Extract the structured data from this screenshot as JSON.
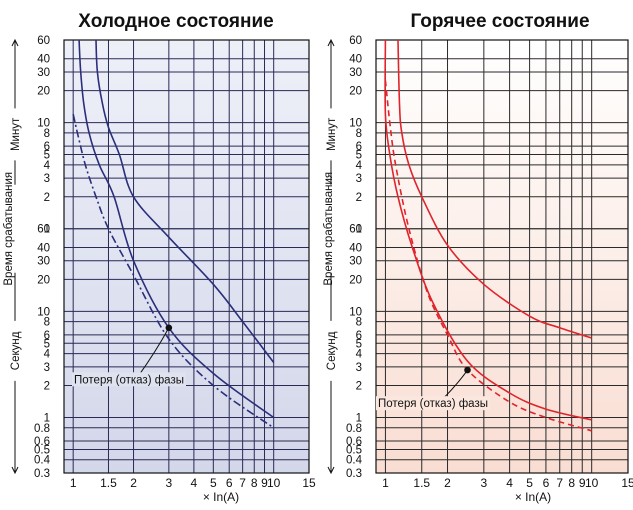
{
  "chart_data": [
    {
      "type": "line",
      "title": "Холодное состояние",
      "x_scale": "log",
      "xlim": [
        0.9,
        15
      ],
      "x_ticks": [
        "1",
        "1.5",
        "2",
        "3",
        "4",
        "5",
        "6",
        "7",
        "8",
        "9",
        "10",
        "15"
      ],
      "xlabel": "× In(A)",
      "y_scale": "log",
      "y_units": "seconds",
      "y_range_seconds": [
        0.3,
        3600
      ],
      "y_ticks_minutes": [
        "1",
        "2",
        "3",
        "4",
        "5",
        "6",
        "8",
        "10",
        "20",
        "30",
        "40",
        "60"
      ],
      "y_ticks_seconds": [
        "0.3",
        "0.4",
        "0.5",
        "0.6",
        "0.8",
        "1",
        "2",
        "3",
        "4",
        "5",
        "6",
        "8",
        "10",
        "20",
        "30",
        "40",
        "60"
      ],
      "y_axis_labels": {
        "minutes": "Минут",
        "main": "Время срабатывания",
        "seconds": "Секунд"
      },
      "grid": true,
      "colors": {
        "curve": "#2b2f7a",
        "grid": "#2a2a55",
        "background_top": "#eef0f8",
        "background_bottom": "#d3d7ea"
      },
      "series": [
        {
          "style": "solid",
          "points": [
            [
              1.3,
              3600
            ],
            [
              1.32,
              1800
            ],
            [
              1.4,
              900
            ],
            [
              1.5,
              540
            ],
            [
              1.7,
              300
            ],
            [
              2.0,
              120
            ],
            [
              3.0,
              50
            ],
            [
              5.0,
              18
            ],
            [
              7.0,
              8
            ],
            [
              10.0,
              3.3
            ]
          ]
        },
        {
          "style": "solid",
          "points": [
            [
              1.07,
              3600
            ],
            [
              1.09,
              1800
            ],
            [
              1.13,
              900
            ],
            [
              1.2,
              480
            ],
            [
              1.35,
              240
            ],
            [
              1.6,
              120
            ],
            [
              2.0,
              30
            ],
            [
              3.0,
              7
            ],
            [
              5.0,
              2.6
            ],
            [
              10.0,
              1.0
            ]
          ]
        },
        {
          "style": "dashdot",
          "points": [
            [
              1.0,
              720
            ],
            [
              1.05,
              480
            ],
            [
              1.15,
              240
            ],
            [
              1.3,
              120
            ],
            [
              1.5,
              60
            ],
            [
              2.0,
              22
            ],
            [
              3.0,
              5.5
            ],
            [
              5.0,
              2.0
            ],
            [
              10.0,
              0.8
            ]
          ]
        }
      ],
      "annotation": {
        "text": "Потеря (отказ) фазы",
        "x": 3.0,
        "y": 7
      }
    },
    {
      "type": "line",
      "title": "Горячее состояние",
      "x_scale": "log",
      "xlim": [
        0.9,
        15
      ],
      "x_ticks": [
        "1",
        "1.5",
        "2",
        "3",
        "4",
        "5",
        "6",
        "7",
        "8",
        "9",
        "10",
        "15"
      ],
      "xlabel": "× In(A)",
      "y_scale": "log",
      "y_units": "seconds",
      "y_range_seconds": [
        0.3,
        3600
      ],
      "y_ticks_minutes": [
        "1",
        "2",
        "3",
        "4",
        "5",
        "6",
        "8",
        "10",
        "20",
        "30",
        "40",
        "60"
      ],
      "y_ticks_seconds": [
        "0.3",
        "0.4",
        "0.5",
        "0.6",
        "0.8",
        "1",
        "2",
        "3",
        "4",
        "5",
        "6",
        "8",
        "10",
        "20",
        "30",
        "40",
        "60"
      ],
      "y_axis_labels": {
        "minutes": "Минут",
        "main": "Время срабатывания",
        "seconds": "Секунд"
      },
      "grid": true,
      "colors": {
        "curve": "#e0242b",
        "grid": "#2a2a2a",
        "background_top": "#ffffff",
        "background_bottom": "#f9ddd2"
      },
      "series": [
        {
          "style": "solid",
          "points": [
            [
              1.15,
              3600
            ],
            [
              1.17,
              900
            ],
            [
              1.2,
              480
            ],
            [
              1.3,
              240
            ],
            [
              1.5,
              120
            ],
            [
              2.0,
              42
            ],
            [
              3.0,
              18
            ],
            [
              5.0,
              9
            ],
            [
              7.0,
              7
            ],
            [
              10.0,
              5.6
            ]
          ]
        },
        {
          "style": "solid",
          "points": [
            [
              1.0,
              3600
            ],
            [
              1.0,
              720
            ],
            [
              1.05,
              300
            ],
            [
              1.15,
              120
            ],
            [
              1.35,
              40
            ],
            [
              1.7,
              12
            ],
            [
              2.5,
              3.4
            ],
            [
              4.0,
              1.7
            ],
            [
              6.0,
              1.2
            ],
            [
              10.0,
              0.95
            ]
          ]
        },
        {
          "style": "dashed",
          "points": [
            [
              1.0,
              1500
            ],
            [
              1.05,
              600
            ],
            [
              1.12,
              240
            ],
            [
              1.3,
              60
            ],
            [
              1.6,
              15
            ],
            [
              2.0,
              6
            ],
            [
              2.5,
              2.8
            ],
            [
              4.0,
              1.4
            ],
            [
              6.0,
              1.0
            ],
            [
              10.0,
              0.75
            ]
          ]
        }
      ],
      "annotation": {
        "text": "Потеря (отказ) фазы",
        "x": 2.5,
        "y": 2.8
      }
    }
  ]
}
